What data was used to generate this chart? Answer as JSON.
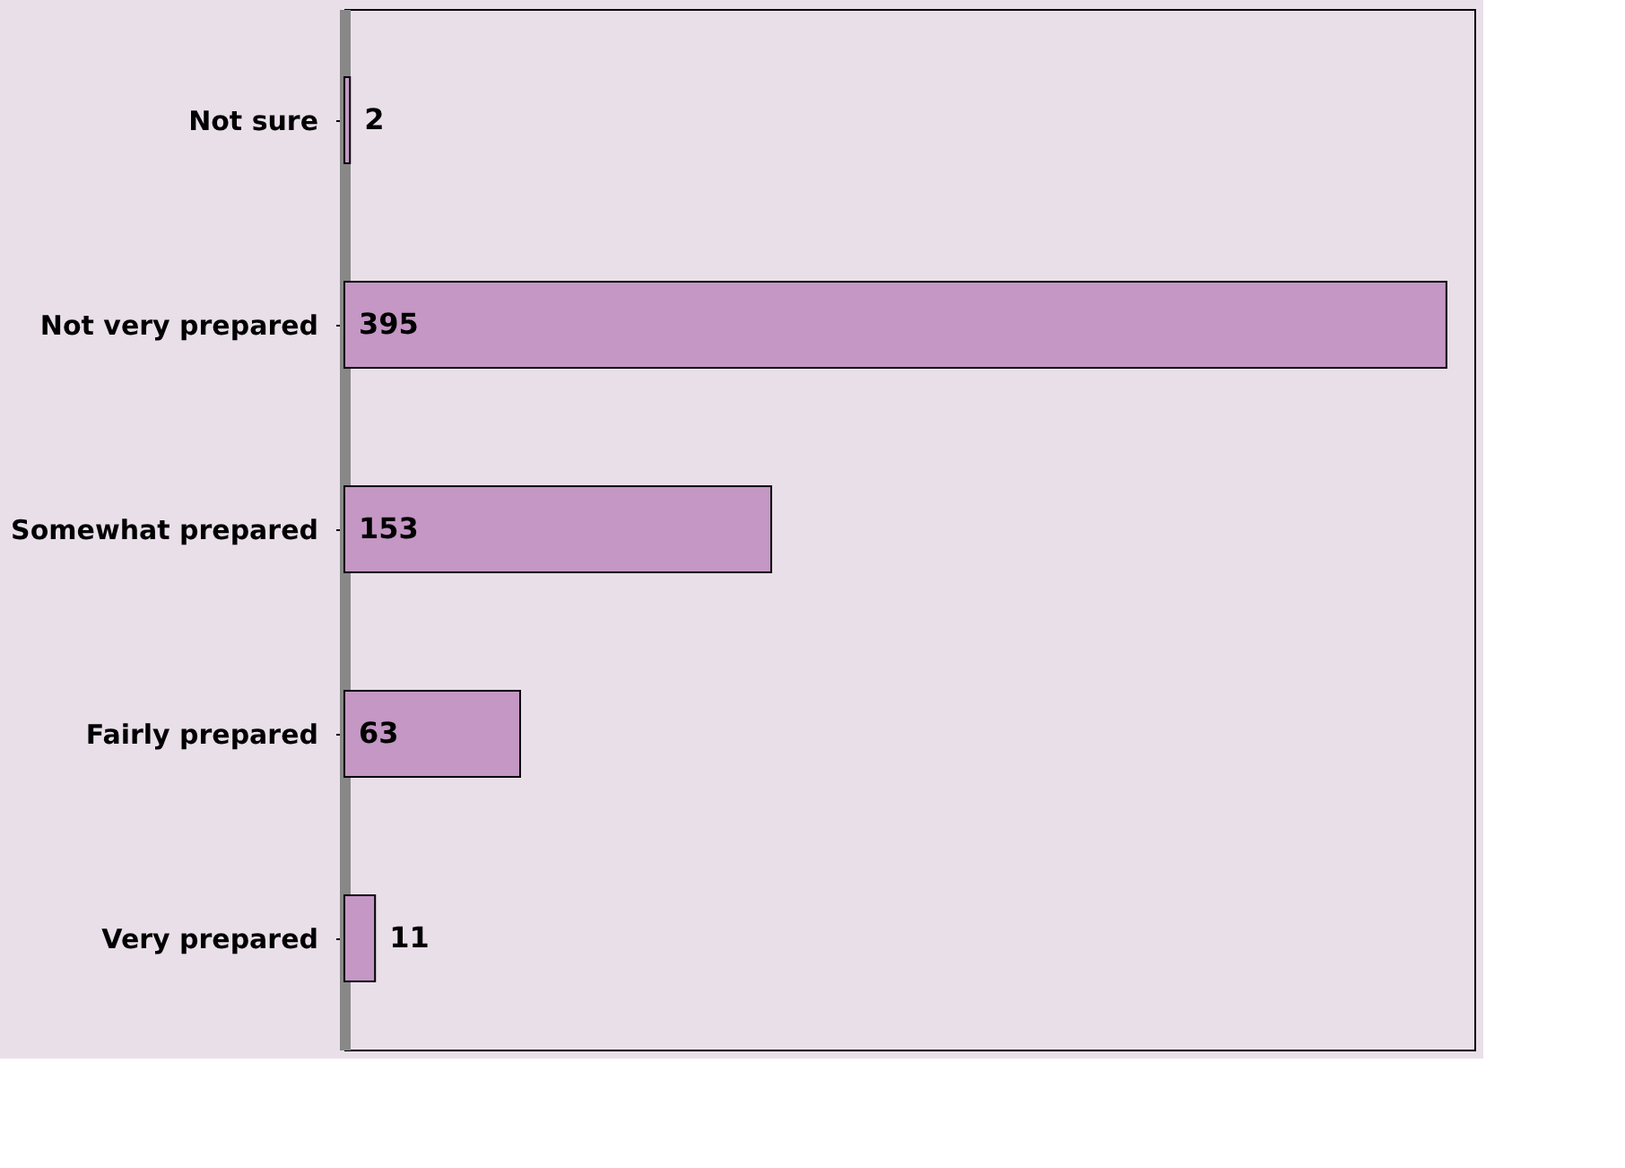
{
  "chart_data": {
    "type": "bar",
    "orientation": "horizontal",
    "categories": [
      "Not sure",
      "Not very prepared",
      "Somewhat prepared",
      "Fairly prepared",
      "Very prepared"
    ],
    "values": [
      2,
      395,
      153,
      63,
      11
    ],
    "color": "#c497c4",
    "xlim": [
      0,
      405
    ],
    "data_labels": true,
    "tick_labels": "y"
  }
}
